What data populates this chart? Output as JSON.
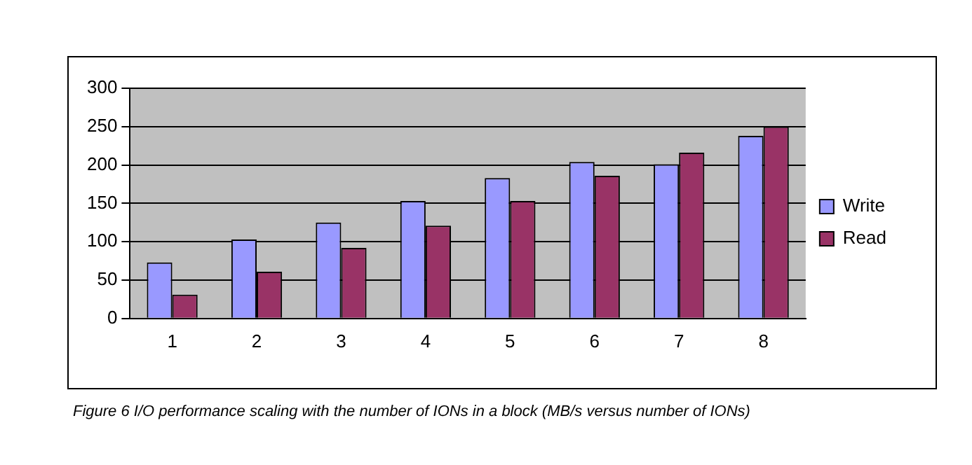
{
  "chart_data": {
    "type": "bar",
    "categories": [
      "1",
      "2",
      "3",
      "4",
      "5",
      "6",
      "7",
      "8"
    ],
    "series": [
      {
        "name": "Write",
        "color": "#9999ff",
        "values": [
          73,
          103,
          125,
          153,
          183,
          204,
          201,
          238
        ]
      },
      {
        "name": "Read",
        "color": "#993366",
        "values": [
          31,
          61,
          92,
          121,
          153,
          186,
          216,
          250
        ]
      }
    ],
    "ylim": [
      0,
      300
    ],
    "yticks": [
      0,
      50,
      100,
      150,
      200,
      250,
      300
    ],
    "grid": "y",
    "legend": "right",
    "annotations": [
      "Figure 6   I/O performance scaling with the number of IONs in a block (MB/s versus number of IONs)"
    ]
  }
}
